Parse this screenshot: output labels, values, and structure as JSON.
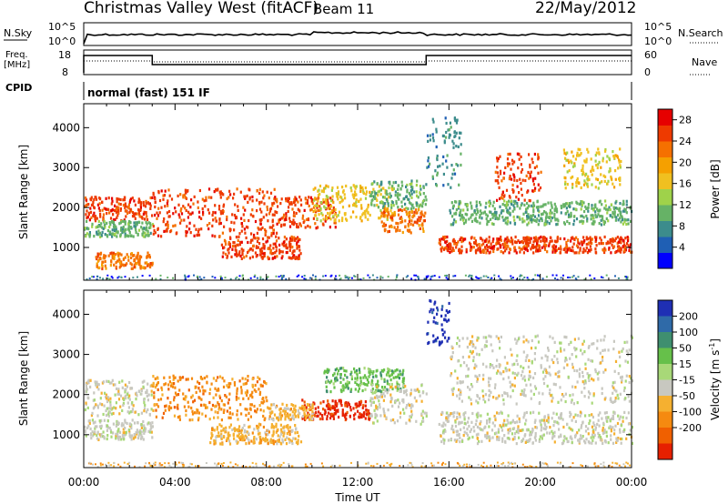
{
  "header": {
    "title": "Christmas Valley West (fitACF)",
    "beam": "Beam 11",
    "date": "22/May/2012"
  },
  "top_panels": {
    "nsky_label": "N.Sky",
    "nsearch_label": "N.Search",
    "freq_label_1": "Freq.",
    "freq_label_2": "[MHz]",
    "nave_label": "Nave",
    "cpid_label": "CPID",
    "cpid_text": "normal (fast) 151 IF",
    "noise_ticks_left": [
      "10^5",
      "10^0"
    ],
    "noise_ticks_right": [
      "10^5",
      "10^0"
    ],
    "freq_ticks_left": [
      "18",
      "8"
    ],
    "freq_ticks_right": [
      "60",
      "0"
    ]
  },
  "chart_data": [
    {
      "type": "heatmap",
      "panel": "power",
      "ylabel": "Slant Range [km]",
      "xlabel": "Time UT",
      "x_ticks": [
        "00:00",
        "04:00",
        "08:00",
        "12:00",
        "16:00",
        "20:00",
        "00:00"
      ],
      "y_ticks": [
        1000,
        2000,
        3000,
        4000
      ],
      "ylim": [
        180,
        4600
      ],
      "xlim_hours": [
        0,
        24
      ],
      "colorbar": {
        "label": "Power [dB]",
        "ticks": [
          4,
          8,
          12,
          16,
          20,
          24,
          28
        ],
        "range": [
          0,
          30
        ],
        "colors": [
          "#0000ff",
          "#1f5fb4",
          "#3c8c8c",
          "#66b266",
          "#9fd24a",
          "#f0c020",
          "#f5a000",
          "#f57000",
          "#ee3a00",
          "#e60000"
        ]
      },
      "scatter_bands": [
        {
          "t": [
            0,
            3
          ],
          "r": [
            1700,
            2300
          ],
          "level": 28
        },
        {
          "t": [
            0,
            3
          ],
          "r": [
            1300,
            1700
          ],
          "level": 10
        },
        {
          "t": [
            0.5,
            3
          ],
          "r": [
            500,
            900
          ],
          "level": 22
        },
        {
          "t": [
            3,
            8.5
          ],
          "r": [
            1300,
            2500
          ],
          "level": 28
        },
        {
          "t": [
            6,
            9.5
          ],
          "r": [
            750,
            1300
          ],
          "level": 26
        },
        {
          "t": [
            8.5,
            11
          ],
          "r": [
            1500,
            2300
          ],
          "level": 26
        },
        {
          "t": [
            10,
            13.5
          ],
          "r": [
            1700,
            2600
          ],
          "level": 16
        },
        {
          "t": [
            12.5,
            15
          ],
          "r": [
            2000,
            2700
          ],
          "level": 10
        },
        {
          "t": [
            13,
            15
          ],
          "r": [
            1400,
            2000
          ],
          "level": 22
        },
        {
          "t": [
            15.5,
            24
          ],
          "r": [
            900,
            1300
          ],
          "level": 26
        },
        {
          "t": [
            16,
            24
          ],
          "r": [
            1600,
            2200
          ],
          "level": 10
        },
        {
          "t": [
            15,
            16.5
          ],
          "r": [
            2500,
            4300
          ],
          "level": 8
        },
        {
          "t": [
            18,
            20
          ],
          "r": [
            2200,
            3400
          ],
          "level": 26
        },
        {
          "t": [
            21,
            23.5
          ],
          "r": [
            2500,
            3500
          ],
          "level": 16
        }
      ]
    },
    {
      "type": "heatmap",
      "panel": "velocity",
      "ylabel": "Slant Range [km]",
      "xlabel": "Time UT",
      "x_ticks": [
        "00:00",
        "04:00",
        "08:00",
        "12:00",
        "16:00",
        "20:00",
        "00:00"
      ],
      "y_ticks": [
        1000,
        2000,
        3000,
        4000
      ],
      "ylim": [
        180,
        4600
      ],
      "xlim_hours": [
        0,
        24
      ],
      "colorbar": {
        "label": "Velocity [m s",
        "label_sup": "-1",
        "label_close": "]",
        "ticks": [
          "200",
          "100",
          "50",
          "15",
          "-15",
          "-50",
          "-100",
          "-200"
        ],
        "colors": [
          "#1f2fb4",
          "#2f6aa8",
          "#3f8f6f",
          "#66c04a",
          "#a8d878",
          "#c8c8c0",
          "#f5b030",
          "#f58a10",
          "#f06000",
          "#e62000"
        ]
      },
      "scatter_bands": [
        {
          "t": [
            0,
            3
          ],
          "r": [
            1500,
            2400
          ],
          "level": 5
        },
        {
          "t": [
            0,
            3
          ],
          "r": [
            900,
            1400
          ],
          "level": 5
        },
        {
          "t": [
            3,
            8
          ],
          "r": [
            1400,
            2500
          ],
          "level": 7
        },
        {
          "t": [
            5.5,
            9.5
          ],
          "r": [
            800,
            1300
          ],
          "level": 6
        },
        {
          "t": [
            9.5,
            12.5
          ],
          "r": [
            1400,
            1900
          ],
          "level": 9
        },
        {
          "t": [
            8,
            10
          ],
          "r": [
            1400,
            1800
          ],
          "level": 6
        },
        {
          "t": [
            10.5,
            14
          ],
          "r": [
            2100,
            2700
          ],
          "level": 3
        },
        {
          "t": [
            12.5,
            15
          ],
          "r": [
            1300,
            2300
          ],
          "level": 5
        },
        {
          "t": [
            15.5,
            24
          ],
          "r": [
            800,
            1600
          ],
          "level": 5
        },
        {
          "t": [
            16,
            24
          ],
          "r": [
            1800,
            3500
          ],
          "level": 5
        },
        {
          "t": [
            15,
            16
          ],
          "r": [
            3200,
            4400
          ],
          "level": 0
        }
      ]
    }
  ]
}
